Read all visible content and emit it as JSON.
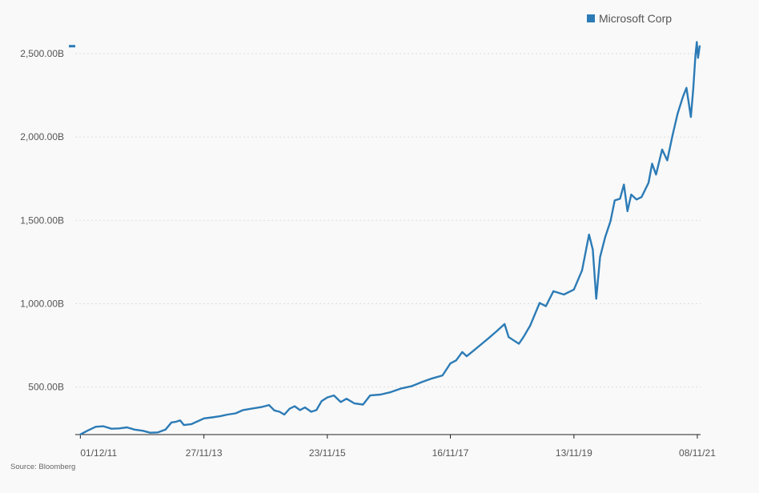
{
  "chart_data": {
    "type": "line",
    "title": "",
    "xlabel": "",
    "ylabel": "",
    "colors": {
      "series": "#2c7bb6",
      "axis": "#222222",
      "grid": "#dddddd"
    },
    "grid": true,
    "legend_position": "top-right",
    "legend": [
      "Microsoft Corp"
    ],
    "xlim": [
      "2011-11-01",
      "2021-11-27"
    ],
    "ylim": [
      215,
      2630
    ],
    "x_ticks": [
      {
        "date": "2011-12-01",
        "label": "01/12/11"
      },
      {
        "date": "2013-11-27",
        "label": "27/11/13"
      },
      {
        "date": "2015-11-23",
        "label": "23/11/15"
      },
      {
        "date": "2017-11-16",
        "label": "16/11/17"
      },
      {
        "date": "2019-11-13",
        "label": "13/11/19"
      },
      {
        "date": "2021-11-08",
        "label": "08/11/21"
      }
    ],
    "y_ticks": [
      {
        "value": 500,
        "label": "500.00B"
      },
      {
        "value": 1000,
        "label": "1,000.00B"
      },
      {
        "value": 1500,
        "label": "1,500.00B"
      },
      {
        "value": 2000,
        "label": "2,000.00B"
      },
      {
        "value": 2500,
        "label": "2,500.00B"
      }
    ],
    "series": [
      {
        "name": "Microsoft Corp",
        "unit": "B",
        "points": [
          [
            "2011-12-01",
            216
          ],
          [
            "2012-01-15",
            240
          ],
          [
            "2012-03-01",
            262
          ],
          [
            "2012-04-15",
            265
          ],
          [
            "2012-06-01",
            250
          ],
          [
            "2012-07-15",
            252
          ],
          [
            "2012-09-01",
            258
          ],
          [
            "2012-10-15",
            245
          ],
          [
            "2012-12-01",
            238
          ],
          [
            "2013-01-15",
            226
          ],
          [
            "2013-03-01",
            228
          ],
          [
            "2013-04-15",
            245
          ],
          [
            "2013-05-20",
            288
          ],
          [
            "2013-06-15",
            292
          ],
          [
            "2013-07-10",
            300
          ],
          [
            "2013-08-01",
            272
          ],
          [
            "2013-09-15",
            278
          ],
          [
            "2013-11-27",
            312
          ],
          [
            "2014-01-15",
            318
          ],
          [
            "2014-03-01",
            325
          ],
          [
            "2014-04-15",
            335
          ],
          [
            "2014-06-01",
            342
          ],
          [
            "2014-07-15",
            362
          ],
          [
            "2014-09-01",
            370
          ],
          [
            "2014-11-01",
            380
          ],
          [
            "2014-12-15",
            392
          ],
          [
            "2015-01-15",
            360
          ],
          [
            "2015-02-15",
            352
          ],
          [
            "2015-03-15",
            335
          ],
          [
            "2015-04-15",
            370
          ],
          [
            "2015-05-15",
            385
          ],
          [
            "2015-06-15",
            362
          ],
          [
            "2015-07-15",
            378
          ],
          [
            "2015-08-20",
            352
          ],
          [
            "2015-09-20",
            362
          ],
          [
            "2015-10-20",
            415
          ],
          [
            "2015-11-23",
            438
          ],
          [
            "2016-01-01",
            450
          ],
          [
            "2016-02-10",
            410
          ],
          [
            "2016-03-15",
            430
          ],
          [
            "2016-05-01",
            402
          ],
          [
            "2016-06-20",
            395
          ],
          [
            "2016-08-01",
            450
          ],
          [
            "2016-10-01",
            455
          ],
          [
            "2016-12-01",
            470
          ],
          [
            "2017-02-01",
            492
          ],
          [
            "2017-04-01",
            505
          ],
          [
            "2017-06-01",
            530
          ],
          [
            "2017-08-01",
            552
          ],
          [
            "2017-10-01",
            570
          ],
          [
            "2017-11-16",
            642
          ],
          [
            "2017-12-20",
            660
          ],
          [
            "2018-01-25",
            710
          ],
          [
            "2018-02-20",
            685
          ],
          [
            "2018-04-01",
            718
          ],
          [
            "2018-05-15",
            755
          ],
          [
            "2018-07-01",
            795
          ],
          [
            "2018-08-15",
            835
          ],
          [
            "2018-10-01",
            878
          ],
          [
            "2018-10-25",
            800
          ],
          [
            "2018-12-24",
            760
          ],
          [
            "2019-01-20",
            800
          ],
          [
            "2019-03-01",
            870
          ],
          [
            "2019-04-25",
            1005
          ],
          [
            "2019-06-01",
            985
          ],
          [
            "2019-07-15",
            1075
          ],
          [
            "2019-09-15",
            1055
          ],
          [
            "2019-11-13",
            1085
          ],
          [
            "2019-12-31",
            1200
          ],
          [
            "2020-02-10",
            1415
          ],
          [
            "2020-03-03",
            1325
          ],
          [
            "2020-03-23",
            1030
          ],
          [
            "2020-04-15",
            1280
          ],
          [
            "2020-05-15",
            1400
          ],
          [
            "2020-06-15",
            1495
          ],
          [
            "2020-07-10",
            1620
          ],
          [
            "2020-08-10",
            1630
          ],
          [
            "2020-09-02",
            1715
          ],
          [
            "2020-09-23",
            1555
          ],
          [
            "2020-10-15",
            1655
          ],
          [
            "2020-11-15",
            1625
          ],
          [
            "2020-12-15",
            1640
          ],
          [
            "2021-01-25",
            1725
          ],
          [
            "2021-02-15",
            1840
          ],
          [
            "2021-03-10",
            1775
          ],
          [
            "2021-04-15",
            1925
          ],
          [
            "2021-05-15",
            1860
          ],
          [
            "2021-06-15",
            2010
          ],
          [
            "2021-07-15",
            2140
          ],
          [
            "2021-08-15",
            2240
          ],
          [
            "2021-09-05",
            2295
          ],
          [
            "2021-10-01",
            2120
          ],
          [
            "2021-10-15",
            2290
          ],
          [
            "2021-10-28",
            2490
          ],
          [
            "2021-11-05",
            2570
          ],
          [
            "2021-11-12",
            2475
          ],
          [
            "2021-11-22",
            2545
          ]
        ]
      }
    ]
  },
  "source": "Source: Bloomberg"
}
